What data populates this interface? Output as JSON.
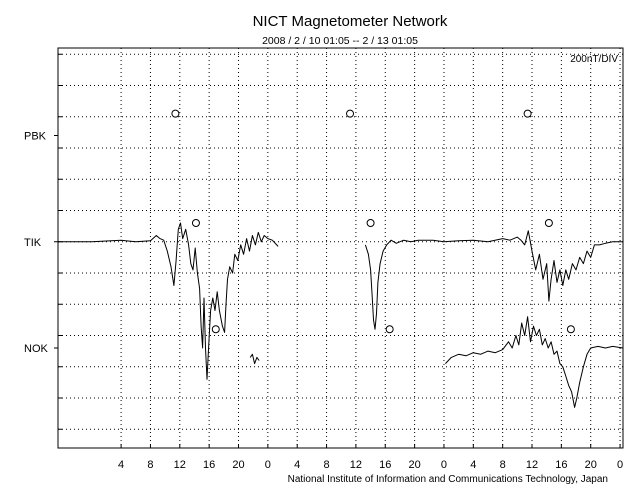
{
  "chart_data": {
    "type": "line",
    "title": "NICT Magnetometer Network",
    "subtitle": "2008 / 2 / 10   01:05 -- 2 / 13   01:05",
    "scale_label": "200nT/DIV",
    "footer": "National Institute of Information and Communications Technology, Japan",
    "x_tick_labels": [
      "4",
      "8",
      "12",
      "16",
      "20",
      "0",
      "4",
      "8",
      "12",
      "16",
      "20",
      "0",
      "4",
      "8",
      "12",
      "16",
      "20",
      "0"
    ],
    "x_tick_hours": [
      4,
      8,
      12,
      16,
      20,
      24,
      28,
      32,
      36,
      40,
      44,
      48,
      52,
      56,
      60,
      64,
      68,
      72
    ],
    "xlim": [
      -4.6,
      72.4
    ],
    "ylim": [
      -6.6,
      6.2
    ],
    "grid": true,
    "grid_style": "dotted",
    "stations": [
      {
        "name": "PBK",
        "baseline": 3.4
      },
      {
        "name": "TIK",
        "baseline": 0
      },
      {
        "name": "NOK",
        "baseline": -3.4
      }
    ],
    "markers": [
      {
        "station": "PBK",
        "x": 11.4,
        "y": 4.1
      },
      {
        "station": "PBK",
        "x": 35.2,
        "y": 4.1
      },
      {
        "station": "PBK",
        "x": 59.4,
        "y": 4.1
      },
      {
        "station": "TIK",
        "x": 14.2,
        "y": 0.6
      },
      {
        "station": "TIK",
        "x": 38.0,
        "y": 0.6
      },
      {
        "station": "TIK",
        "x": 62.3,
        "y": 0.6
      },
      {
        "station": "NOK",
        "x": 16.9,
        "y": -2.8
      },
      {
        "station": "NOK",
        "x": 40.6,
        "y": -2.8
      },
      {
        "station": "NOK",
        "x": 65.3,
        "y": -2.8
      }
    ],
    "series": [
      {
        "station": "TIK",
        "segments": [
          [
            [
              -4.6,
              0.0
            ],
            [
              0,
              0.0
            ],
            [
              4,
              0.05
            ],
            [
              6,
              0.0
            ],
            [
              8,
              0.03
            ],
            [
              8.8,
              0.2
            ],
            [
              9.3,
              0.1
            ],
            [
              9.8,
              0.05
            ],
            [
              10.3,
              -0.3
            ],
            [
              10.8,
              -0.8
            ],
            [
              11.2,
              -1.4
            ],
            [
              11.5,
              -0.6
            ],
            [
              11.8,
              0.4
            ],
            [
              12.1,
              0.6
            ],
            [
              12.4,
              0.1
            ],
            [
              12.8,
              0.4
            ],
            [
              13.2,
              -0.1
            ],
            [
              13.5,
              -0.7
            ],
            [
              13.8,
              -0.9
            ],
            [
              14.1,
              -0.2
            ],
            [
              14.4,
              -1.0
            ],
            [
              14.7,
              -1.5
            ],
            [
              14.9,
              -2.7
            ],
            [
              15.1,
              -3.4
            ],
            [
              15.3,
              -1.8
            ],
            [
              15.5,
              -3.4
            ],
            [
              15.7,
              -4.4
            ],
            [
              15.9,
              -3.5
            ],
            [
              16.2,
              -2.2
            ],
            [
              16.5,
              -1.8
            ],
            [
              16.8,
              -2.2
            ],
            [
              17.1,
              -1.6
            ],
            [
              17.4,
              -2.2
            ],
            [
              17.8,
              -2.7
            ],
            [
              18.1,
              -2.9
            ],
            [
              18.3,
              -2.0
            ],
            [
              18.5,
              -1.2
            ],
            [
              18.8,
              -0.8
            ],
            [
              19.2,
              -1.0
            ],
            [
              19.5,
              -0.4
            ],
            [
              19.9,
              -0.6
            ],
            [
              20.3,
              -0.1
            ],
            [
              20.7,
              -0.4
            ],
            [
              21.1,
              0.1
            ],
            [
              21.5,
              -0.3
            ],
            [
              21.9,
              0.2
            ],
            [
              22.3,
              -0.1
            ],
            [
              22.7,
              0.3
            ],
            [
              23.1,
              0.0
            ],
            [
              23.5,
              0.2
            ],
            [
              24,
              0.1
            ],
            [
              24.6,
              0.05
            ],
            [
              25.4,
              -0.15
            ]
          ],
          [
            [
              37.3,
              -0.1
            ],
            [
              37.7,
              -0.4
            ],
            [
              38.0,
              -0.9
            ],
            [
              38.2,
              -1.7
            ],
            [
              38.4,
              -2.5
            ],
            [
              38.6,
              -2.8
            ],
            [
              38.8,
              -2.3
            ],
            [
              39.0,
              -1.3
            ],
            [
              39.3,
              -0.7
            ],
            [
              39.7,
              -0.3
            ],
            [
              40.2,
              -0.1
            ],
            [
              40.8,
              0.05
            ],
            [
              41.5,
              -0.05
            ],
            [
              42.5,
              0.05
            ],
            [
              43.5,
              0.0
            ],
            [
              44.5,
              0.05
            ],
            [
              46.5,
              0.05
            ],
            [
              48,
              0.0
            ],
            [
              50,
              0.03
            ],
            [
              52,
              0.05
            ],
            [
              54,
              0.0
            ],
            [
              56,
              0.1
            ],
            [
              57,
              0.05
            ],
            [
              58,
              0.15
            ],
            [
              58.5,
              0.05
            ],
            [
              59,
              -0.1
            ],
            [
              59.5,
              0.35
            ],
            [
              60,
              -0.3
            ],
            [
              60.5,
              -0.9
            ],
            [
              61,
              -0.4
            ],
            [
              61.5,
              -1.2
            ],
            [
              62,
              -0.7
            ],
            [
              62.3,
              -1.9
            ],
            [
              62.6,
              -1.2
            ],
            [
              63,
              -0.6
            ],
            [
              63.4,
              -1.3
            ],
            [
              63.8,
              -0.9
            ],
            [
              64.2,
              -1.4
            ],
            [
              64.6,
              -0.9
            ],
            [
              65,
              -1.2
            ],
            [
              65.5,
              -0.7
            ],
            [
              66,
              -0.9
            ],
            [
              66.5,
              -0.5
            ],
            [
              67,
              -0.7
            ],
            [
              67.5,
              -0.3
            ],
            [
              68,
              -0.5
            ],
            [
              68.5,
              -0.1
            ],
            [
              69.2,
              -0.1
            ],
            [
              70,
              -0.05
            ],
            [
              71,
              0.0
            ],
            [
              72.4,
              0.0
            ]
          ]
        ]
      },
      {
        "station": "NOK",
        "segments": [
          [
            [
              21.6,
              -3.7
            ],
            [
              21.9,
              -3.6
            ],
            [
              22.2,
              -3.9
            ],
            [
              22.5,
              -3.7
            ],
            [
              22.8,
              -3.8
            ]
          ],
          [
            [
              48.2,
              -3.9
            ],
            [
              49,
              -3.7
            ],
            [
              50,
              -3.6
            ],
            [
              51,
              -3.65
            ],
            [
              52,
              -3.55
            ],
            [
              53,
              -3.6
            ],
            [
              54,
              -3.5
            ],
            [
              55,
              -3.55
            ],
            [
              56,
              -3.45
            ],
            [
              56.8,
              -3.2
            ],
            [
              57.3,
              -3.4
            ],
            [
              57.8,
              -3.0
            ],
            [
              58.2,
              -3.3
            ],
            [
              58.6,
              -2.6
            ],
            [
              59,
              -3.0
            ],
            [
              59.4,
              -2.4
            ],
            [
              59.8,
              -3.2
            ],
            [
              60.2,
              -2.7
            ],
            [
              60.6,
              -3.0
            ],
            [
              61,
              -2.8
            ],
            [
              61.4,
              -3.3
            ],
            [
              61.8,
              -3.1
            ],
            [
              62.2,
              -3.4
            ],
            [
              62.6,
              -3.2
            ],
            [
              63,
              -3.6
            ],
            [
              63.4,
              -3.5
            ],
            [
              63.8,
              -3.9
            ],
            [
              64.2,
              -4.0
            ],
            [
              64.6,
              -4.3
            ],
            [
              65,
              -4.6
            ],
            [
              65.4,
              -4.8
            ],
            [
              65.8,
              -5.3
            ],
            [
              66.1,
              -5.0
            ],
            [
              66.5,
              -4.5
            ],
            [
              67,
              -4.0
            ],
            [
              67.5,
              -3.6
            ],
            [
              68,
              -3.4
            ],
            [
              69,
              -3.35
            ],
            [
              70,
              -3.4
            ],
            [
              71,
              -3.35
            ],
            [
              72.4,
              -3.4
            ]
          ]
        ]
      }
    ]
  }
}
